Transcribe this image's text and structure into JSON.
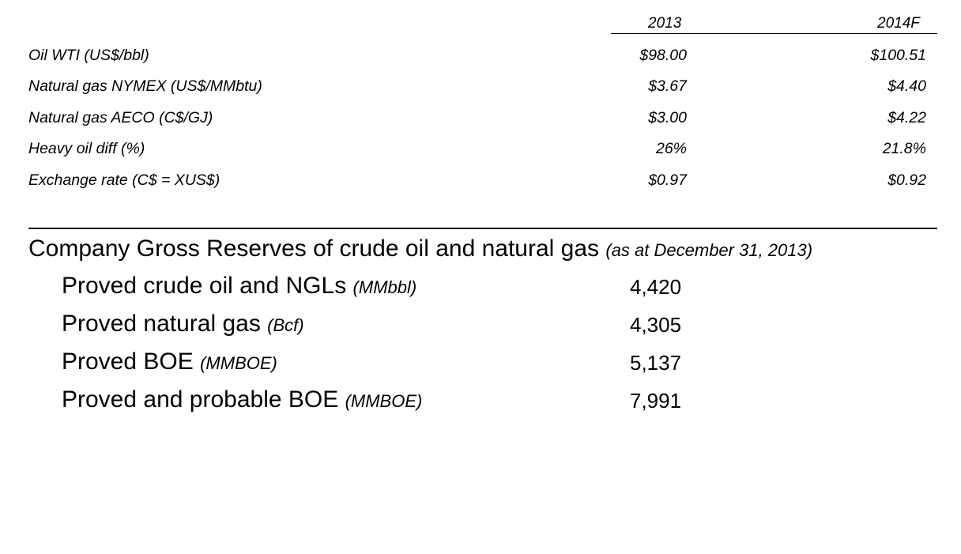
{
  "pricing_table": {
    "columns": [
      "2013",
      "2014F"
    ],
    "rows": [
      {
        "label": "Oil WTI (US$/bbl)",
        "v2013": "$98.00",
        "v2014": "$100.51"
      },
      {
        "label": "Natural gas NYMEX (US$/MMbtu)",
        "v2013": "$3.67",
        "v2014": "$4.40"
      },
      {
        "label": "Natural gas AECO (C$/GJ)",
        "v2013": "$3.00",
        "v2014": "$4.22"
      },
      {
        "label": "Heavy oil diff (%)",
        "v2013": "26%",
        "v2014": "21.8%"
      },
      {
        "label": "Exchange rate (C$ = XUS$)",
        "v2013": "$0.97",
        "v2014": "$0.92"
      }
    ]
  },
  "reserves": {
    "title": "Company Gross Reserves of crude oil and natural gas",
    "title_note": "(as at December 31, 2013)",
    "items": [
      {
        "label": "Proved crude oil and NGLs",
        "unit": "(MMbbl)",
        "value": "4,420"
      },
      {
        "label": "Proved natural gas",
        "unit": "(Bcf)",
        "value": "4,305"
      },
      {
        "label": "Proved BOE",
        "unit": "(MMBOE)",
        "value": "5,137"
      },
      {
        "label": "Proved and probable BOE",
        "unit": "(MMBOE)",
        "value": "7,991"
      }
    ]
  }
}
